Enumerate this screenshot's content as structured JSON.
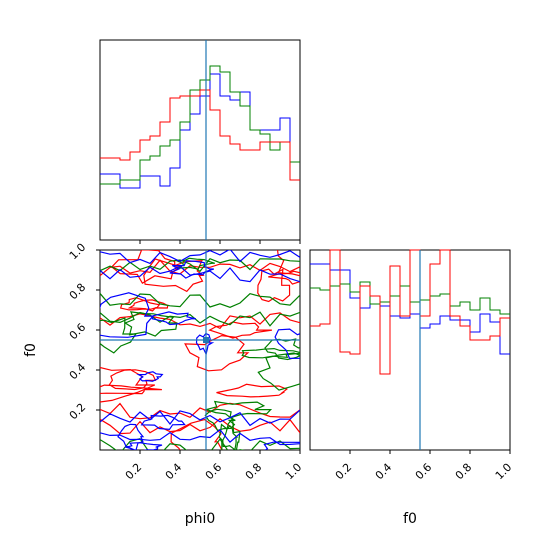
{
  "chart_data": {
    "type": "corner",
    "parameters": [
      "phi0",
      "f0"
    ],
    "axis_labels": {
      "x_left": "phi0",
      "x_right": "f0",
      "y_lower": "f0"
    },
    "ticks": {
      "values": [
        0.2,
        0.4,
        0.6,
        0.8,
        1.0
      ],
      "labels": [
        "0.2",
        "0.4",
        "0.6",
        "0.8",
        "1.0"
      ],
      "range": [
        0.0,
        1.0
      ]
    },
    "truth": {
      "phi0": 0.53,
      "f0": 0.55,
      "color": "#1f77b4"
    },
    "series_colors": [
      "#0000ff",
      "#008000",
      "#ff0000"
    ],
    "hist_phi0": {
      "bins": 20,
      "x_range": [
        0.0,
        1.0
      ],
      "y_max": 1.0,
      "series": [
        {
          "color": "#0000ff",
          "values": [
            0.33,
            0.33,
            0.26,
            0.26,
            0.32,
            0.32,
            0.27,
            0.36,
            0.55,
            0.63,
            0.72,
            0.83,
            0.72,
            0.7,
            0.74,
            0.55,
            0.55,
            0.55,
            0.61,
            0.39
          ]
        },
        {
          "color": "#008000",
          "values": [
            0.28,
            0.28,
            0.3,
            0.3,
            0.4,
            0.42,
            0.47,
            0.5,
            0.59,
            0.75,
            0.8,
            0.87,
            0.84,
            0.74,
            0.67,
            0.55,
            0.53,
            0.45,
            0.49,
            0.39
          ]
        },
        {
          "color": "#ff0000",
          "values": [
            0.41,
            0.41,
            0.4,
            0.44,
            0.5,
            0.52,
            0.59,
            0.71,
            0.72,
            0.72,
            0.75,
            0.65,
            0.52,
            0.48,
            0.45,
            0.45,
            0.49,
            0.49,
            0.49,
            0.3
          ]
        }
      ]
    },
    "hist_f0": {
      "bins": 20,
      "x_range": [
        0.0,
        1.0
      ],
      "y_max": 1.0,
      "series": [
        {
          "color": "#0000ff",
          "values": [
            0.93,
            0.93,
            0.9,
            0.9,
            0.76,
            0.71,
            0.77,
            0.72,
            0.67,
            0.66,
            0.68,
            0.61,
            0.63,
            0.67,
            0.65,
            0.65,
            0.59,
            0.68,
            0.64,
            0.48
          ]
        },
        {
          "color": "#008000",
          "values": [
            0.81,
            0.8,
            0.82,
            0.83,
            0.79,
            0.84,
            0.73,
            0.74,
            0.77,
            0.82,
            0.74,
            0.75,
            0.77,
            0.78,
            0.72,
            0.74,
            0.7,
            0.76,
            0.7,
            0.68
          ]
        },
        {
          "color": "#ff0000",
          "values": [
            0.62,
            0.63,
            1.0,
            0.49,
            0.48,
            0.82,
            0.77,
            0.38,
            0.92,
            0.67,
            1.0,
            0.67,
            0.93,
            1.0,
            0.67,
            0.62,
            0.55,
            0.55,
            0.57,
            0.66
          ]
        }
      ]
    }
  }
}
